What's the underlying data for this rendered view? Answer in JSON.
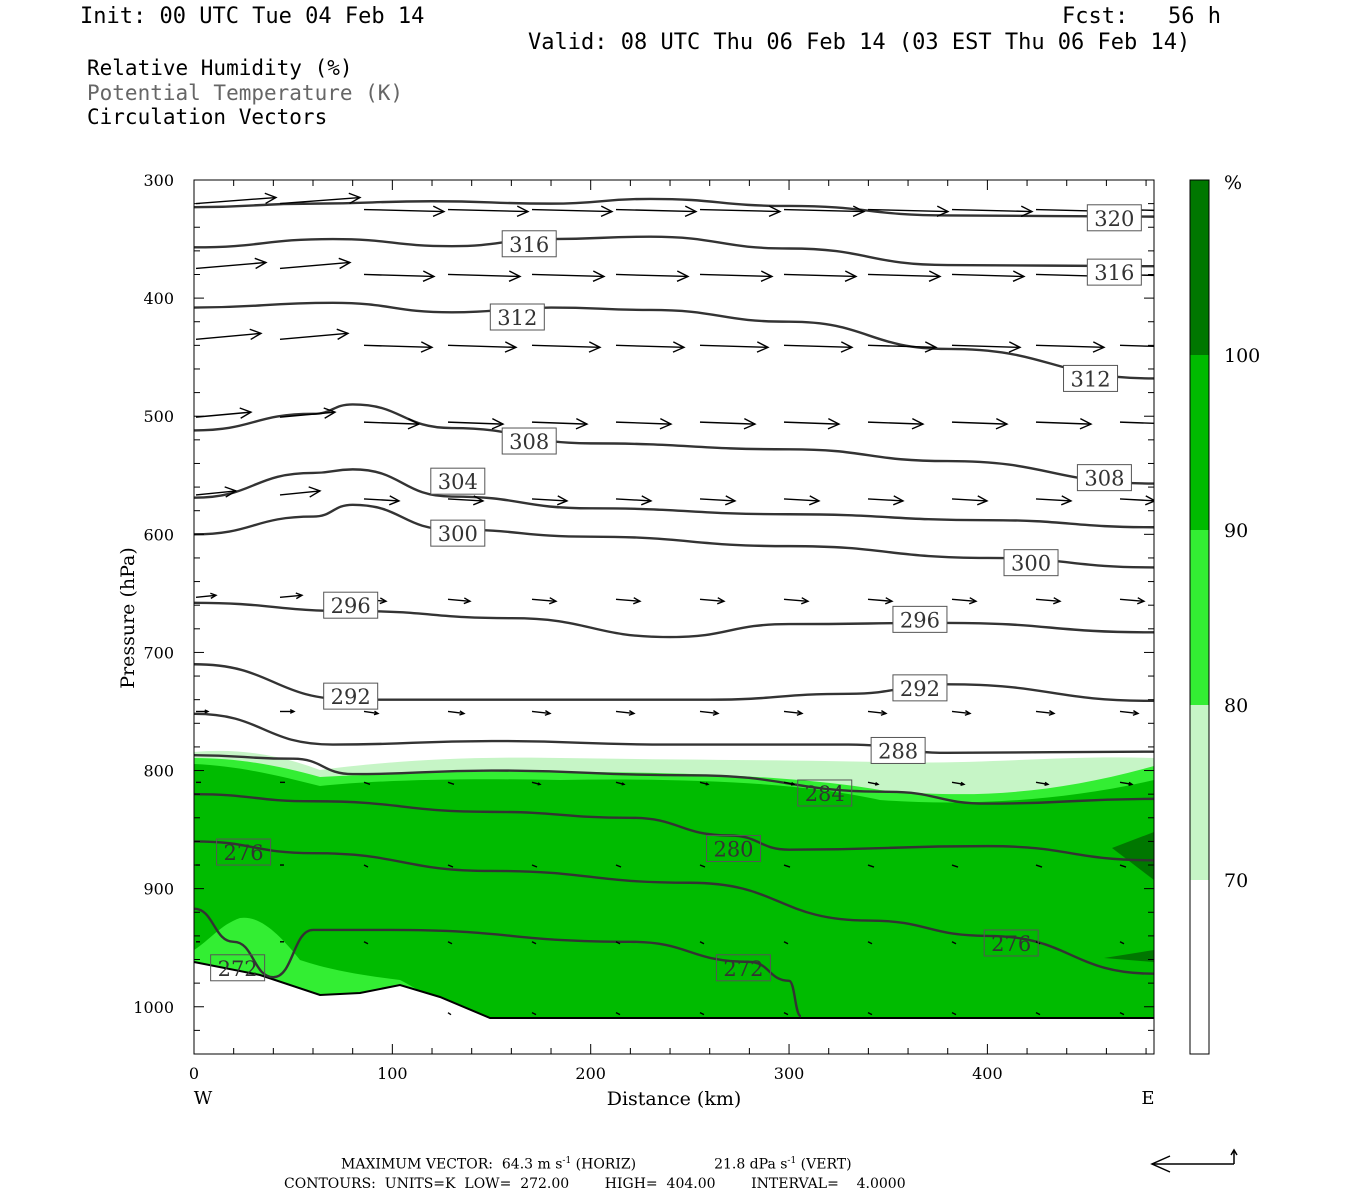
{
  "header": {
    "init": "Init: 00 UTC Tue 04 Feb 14",
    "fcst": "Fcst:   56 h",
    "valid": "Valid: 08 UTC Thu 06 Feb 14 (03 EST Thu 06 Feb 14)"
  },
  "legend": {
    "rh": "Relative Humidity (%)",
    "theta": "Potential Temperature (K)",
    "vectors": "Circulation Vectors"
  },
  "footer": {
    "max_vector_prefix": "MAXIMUM VECTOR:  64.3 m s",
    "max_vector_horiz": " (HORIZ)",
    "max_vector_vert_prefix": "21.8 dPa s",
    "max_vector_vert": " (VERT)",
    "contours": "CONTOURS:  UNITS=K  LOW=  272.00        HIGH=  404.00        INTERVAL=    4.0000",
    "exponent": "-1"
  },
  "colors": {
    "rh70": "#c6f5c6",
    "rh80": "#33ee33",
    "rh90": "#00bb00",
    "rh100": "#007700",
    "contour": "#333333",
    "vector": "#000000"
  },
  "chart_data": {
    "type": "cross-section",
    "xlabel": "Distance (km)",
    "ylabel": "Pressure (hPa)",
    "xlim": [
      0,
      484
    ],
    "ylim": [
      1040,
      300
    ],
    "x_ticks": [
      "0",
      "100",
      "200",
      "300",
      "400"
    ],
    "y_ticks": [
      "300",
      "400",
      "500",
      "600",
      "700",
      "800",
      "900",
      "1000"
    ],
    "x_end_labels": {
      "left": "W",
      "right": "E"
    },
    "colorbar": {
      "unit": "%",
      "levels": [
        "70",
        "80",
        "90",
        "100"
      ]
    },
    "rh_shading_note": "RH >= 70 below ~790 hPa, >= 90 in most of 800-1000 hPa layer",
    "theta_contours": [
      {
        "label": "320",
        "points": [
          [
            0,
            323
          ],
          [
            60,
            320
          ],
          [
            120,
            318
          ],
          [
            180,
            320
          ],
          [
            230,
            316
          ],
          [
            300,
            322
          ],
          [
            380,
            330
          ],
          [
            484,
            331
          ]
        ],
        "label_at": [
          464,
          332
        ]
      },
      {
        "label": "316",
        "points": [
          [
            0,
            357
          ],
          [
            70,
            350
          ],
          [
            130,
            356
          ],
          [
            180,
            350
          ],
          [
            230,
            348
          ],
          [
            300,
            358
          ],
          [
            380,
            372
          ],
          [
            484,
            373
          ]
        ],
        "label_at": [
          169,
          354
        ],
        "label2": "316",
        "label2_at": [
          464,
          378
        ]
      },
      {
        "label": "312",
        "points": [
          [
            0,
            408
          ],
          [
            70,
            404
          ],
          [
            130,
            412
          ],
          [
            180,
            408
          ],
          [
            230,
            410
          ],
          [
            300,
            420
          ],
          [
            380,
            443
          ],
          [
            484,
            468
          ]
        ],
        "label_at": [
          163,
          416
        ],
        "label2": "312",
        "label2_at": [
          452,
          468
        ]
      },
      {
        "label": "308",
        "points": [
          [
            0,
            512
          ],
          [
            60,
            498
          ],
          [
            80,
            490
          ],
          [
            130,
            510
          ],
          [
            200,
            523
          ],
          [
            300,
            528
          ],
          [
            380,
            538
          ],
          [
            484,
            557
          ]
        ],
        "label_at": [
          169,
          521
        ],
        "label2": "308",
        "label2_at": [
          459,
          552
        ]
      },
      {
        "label": "304",
        "points": [
          [
            0,
            569
          ],
          [
            60,
            548
          ],
          [
            80,
            545
          ],
          [
            130,
            568
          ],
          [
            200,
            578
          ],
          [
            300,
            583
          ],
          [
            400,
            588
          ],
          [
            484,
            594
          ]
        ],
        "label_at": [
          133,
          555
        ]
      },
      {
        "label": "300",
        "points": [
          [
            0,
            600
          ],
          [
            60,
            585
          ],
          [
            80,
            575
          ],
          [
            130,
            596
          ],
          [
            200,
            602
          ],
          [
            300,
            610
          ],
          [
            400,
            620
          ],
          [
            484,
            628
          ]
        ],
        "label_at": [
          133,
          599
        ],
        "label2": "300",
        "label2_at": [
          422,
          624
        ]
      },
      {
        "label": "296",
        "points": [
          [
            0,
            658
          ],
          [
            80,
            665
          ],
          [
            160,
            671
          ],
          [
            240,
            687
          ],
          [
            300,
            676
          ],
          [
            380,
            675
          ],
          [
            484,
            683
          ]
        ],
        "label_at": [
          79,
          660
        ],
        "label2": "296",
        "label2_at": [
          366,
          672
        ]
      },
      {
        "label": "292",
        "points": [
          [
            0,
            710
          ],
          [
            80,
            740
          ],
          [
            160,
            740
          ],
          [
            260,
            740
          ],
          [
            330,
            735
          ],
          [
            380,
            727
          ],
          [
            484,
            741
          ]
        ],
        "label_at": [
          79,
          737
        ],
        "label2": "292",
        "label2_at": [
          366,
          730
        ]
      },
      {
        "label": "288",
        "points": [
          [
            0,
            752
          ],
          [
            70,
            778
          ],
          [
            150,
            775
          ],
          [
            240,
            778
          ],
          [
            330,
            778
          ],
          [
            380,
            785
          ],
          [
            484,
            784
          ]
        ],
        "label_at": [
          355,
          783
        ]
      },
      {
        "label": "284",
        "points": [
          [
            0,
            787
          ],
          [
            50,
            790
          ],
          [
            80,
            803
          ],
          [
            150,
            800
          ],
          [
            250,
            804
          ],
          [
            350,
            818
          ],
          [
            400,
            828
          ],
          [
            484,
            824
          ]
        ],
        "label_at": [
          318,
          819
        ]
      },
      {
        "label": "280",
        "points": [
          [
            0,
            820
          ],
          [
            60,
            826
          ],
          [
            150,
            835
          ],
          [
            220,
            840
          ],
          [
            270,
            855
          ],
          [
            300,
            867
          ],
          [
            400,
            864
          ],
          [
            484,
            876
          ]
        ],
        "label_at": [
          272,
          866
        ]
      },
      {
        "label": "276",
        "points": [
          [
            0,
            860
          ],
          [
            60,
            870
          ],
          [
            150,
            885
          ],
          [
            250,
            895
          ],
          [
            340,
            927
          ],
          [
            400,
            940
          ],
          [
            484,
            972
          ]
        ],
        "label_at": [
          25,
          869
        ],
        "label2": "276",
        "label2_at": [
          412,
          946
        ]
      },
      {
        "label": "272",
        "points": [
          [
            0,
            917
          ],
          [
            20,
            945
          ],
          [
            40,
            975
          ],
          [
            60,
            935
          ],
          [
            100,
            935
          ],
          [
            220,
            945
          ],
          [
            280,
            962
          ],
          [
            300,
            978
          ],
          [
            306,
            1008
          ]
        ],
        "label_at": [
          22,
          967
        ],
        "label2": "272",
        "label2_at": [
          277,
          967
        ]
      }
    ]
  }
}
